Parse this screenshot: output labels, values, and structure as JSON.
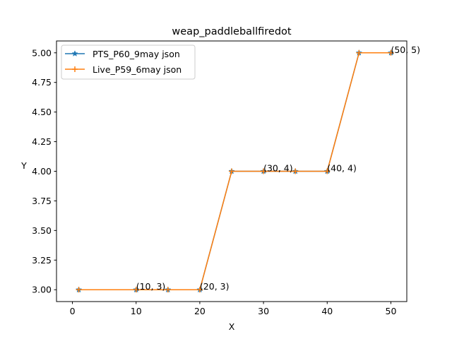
{
  "chart_data": {
    "type": "line",
    "title": "weap_paddleballfiredot",
    "xlabel": "X",
    "ylabel": "Y",
    "xlim": [
      -2.5,
      52.5
    ],
    "ylim": [
      2.9,
      5.1
    ],
    "x_ticks": [
      0,
      10,
      20,
      30,
      40,
      50
    ],
    "y_ticks": [
      3.0,
      3.25,
      3.5,
      3.75,
      4.0,
      4.25,
      4.5,
      4.75,
      5.0
    ],
    "y_tick_labels": [
      "3.00",
      "3.25",
      "3.50",
      "3.75",
      "4.00",
      "4.25",
      "4.50",
      "4.75",
      "5.00"
    ],
    "x_tick_labels": [
      "0",
      "10",
      "20",
      "30",
      "40",
      "50"
    ],
    "grid": false,
    "legend_position": "upper-left",
    "x": [
      1,
      10,
      15,
      20,
      25,
      30,
      35,
      40,
      45,
      50
    ],
    "series": [
      {
        "name": "PTS_P60_9may json",
        "color": "#1f77b4",
        "marker": "star",
        "values": [
          3,
          3,
          3,
          3,
          4,
          4,
          4,
          4,
          5,
          5
        ]
      },
      {
        "name": "Live_P59_6may json",
        "color": "#ff7f0e",
        "marker": "plus",
        "values": [
          3,
          3,
          3,
          3,
          4,
          4,
          4,
          4,
          5,
          5
        ]
      }
    ],
    "annotations": [
      {
        "x": 10,
        "y": 3,
        "text": "(10, 3)"
      },
      {
        "x": 20,
        "y": 3,
        "text": "(20, 3)"
      },
      {
        "x": 30,
        "y": 4,
        "text": "(30, 4)"
      },
      {
        "x": 40,
        "y": 4,
        "text": "(40, 4)"
      },
      {
        "x": 50,
        "y": 5,
        "text": "(50, 5)"
      }
    ]
  }
}
